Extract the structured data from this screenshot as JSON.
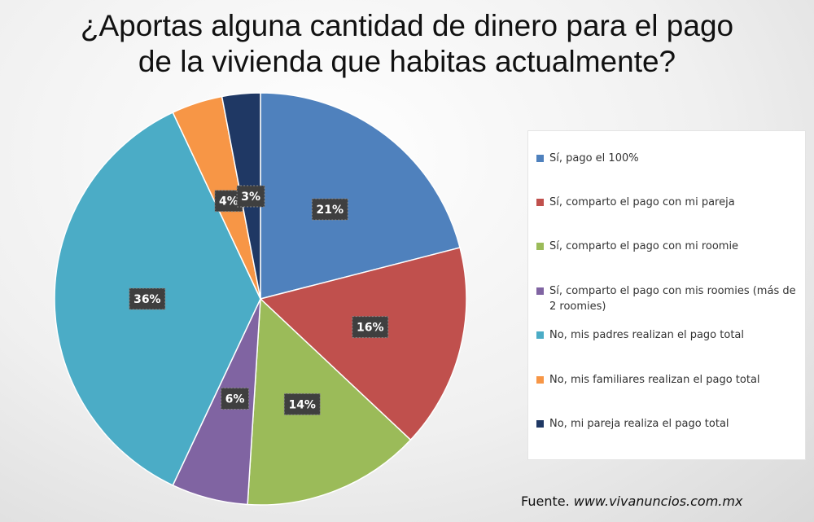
{
  "title": {
    "line1": "¿Aportas alguna cantidad de dinero para el pago",
    "line2": "de la vivienda que habitas actualmente?"
  },
  "source": {
    "label": "Fuente.",
    "url": "www.vivanuncios.com.mx"
  },
  "chart_data": {
    "type": "pie",
    "title": "¿Aportas alguna cantidad de dinero para el pago de la vivienda que habitas actualmente?",
    "legend_position": "right",
    "slices": [
      {
        "label": "Sí, pago el 100%",
        "value": 21,
        "display": "21%",
        "color": "#4F81BD"
      },
      {
        "label": "Sí, comparto el pago con mi pareja",
        "value": 16,
        "display": "16%",
        "color": "#C0504D"
      },
      {
        "label": "Sí, comparto el pago con mi roomie",
        "value": 14,
        "display": "14%",
        "color": "#9BBB59"
      },
      {
        "label": "Sí, comparto el pago con mis roomies (más de 2 roomies)",
        "value": 6,
        "display": "6%",
        "color": "#8064A2"
      },
      {
        "label": "No, mis padres realizan el pago total",
        "value": 36,
        "display": "36%",
        "color": "#4BACC6"
      },
      {
        "label": "No, mis familiares realizan el pago total",
        "value": 4,
        "display": "4%",
        "color": "#F79646"
      },
      {
        "label": "No, mi pareja realiza el pago total",
        "value": 3,
        "display": "3%",
        "color": "#1F3864"
      }
    ]
  }
}
